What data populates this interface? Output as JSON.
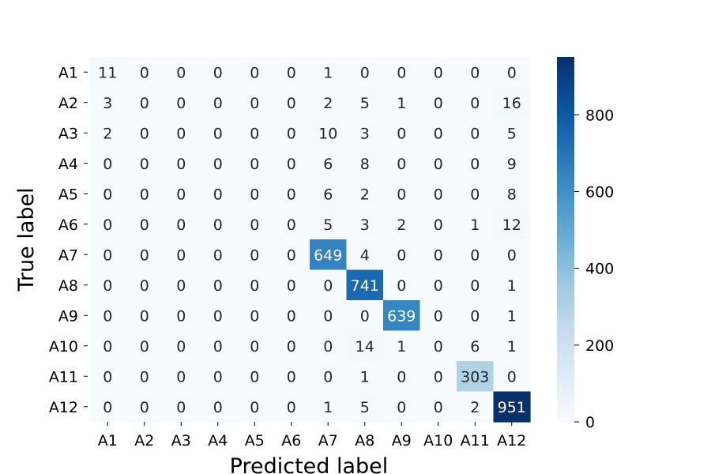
{
  "chart_data": {
    "type": "heatmap",
    "title": "",
    "xlabel": "Predicted label",
    "ylabel": "True label",
    "x_categories": [
      "A1",
      "A2",
      "A3",
      "A4",
      "A5",
      "A6",
      "A7",
      "A8",
      "A9",
      "A10",
      "A11",
      "A12"
    ],
    "y_categories": [
      "A1",
      "A2",
      "A3",
      "A4",
      "A5",
      "A6",
      "A7",
      "A8",
      "A9",
      "A10",
      "A11",
      "A12"
    ],
    "values": [
      [
        11,
        0,
        0,
        0,
        0,
        0,
        1,
        0,
        0,
        0,
        0,
        0
      ],
      [
        3,
        0,
        0,
        0,
        0,
        0,
        2,
        5,
        1,
        0,
        0,
        16
      ],
      [
        2,
        0,
        0,
        0,
        0,
        0,
        10,
        3,
        0,
        0,
        0,
        5
      ],
      [
        0,
        0,
        0,
        0,
        0,
        0,
        6,
        8,
        0,
        0,
        0,
        9
      ],
      [
        0,
        0,
        0,
        0,
        0,
        0,
        6,
        2,
        0,
        0,
        0,
        8
      ],
      [
        0,
        0,
        0,
        0,
        0,
        0,
        5,
        3,
        2,
        0,
        1,
        12
      ],
      [
        0,
        0,
        0,
        0,
        0,
        0,
        649,
        4,
        0,
        0,
        0,
        0
      ],
      [
        0,
        0,
        0,
        0,
        0,
        0,
        0,
        741,
        0,
        0,
        0,
        1
      ],
      [
        0,
        0,
        0,
        0,
        0,
        0,
        0,
        0,
        639,
        0,
        0,
        1
      ],
      [
        0,
        0,
        0,
        0,
        0,
        0,
        0,
        14,
        1,
        0,
        6,
        1
      ],
      [
        0,
        0,
        0,
        0,
        0,
        0,
        0,
        1,
        0,
        0,
        303,
        0
      ],
      [
        0,
        0,
        0,
        0,
        0,
        0,
        1,
        5,
        0,
        0,
        2,
        951
      ]
    ],
    "colormap": "Blues",
    "vmin": 0,
    "vmax": 951,
    "colorbar_ticks": [
      0,
      200,
      400,
      600,
      800
    ],
    "colorbar_tick_labels": [
      "0",
      "200",
      "400",
      "600",
      "800"
    ],
    "annotation_dark_text": "#262626",
    "annotation_light_text": "#ffffff"
  }
}
